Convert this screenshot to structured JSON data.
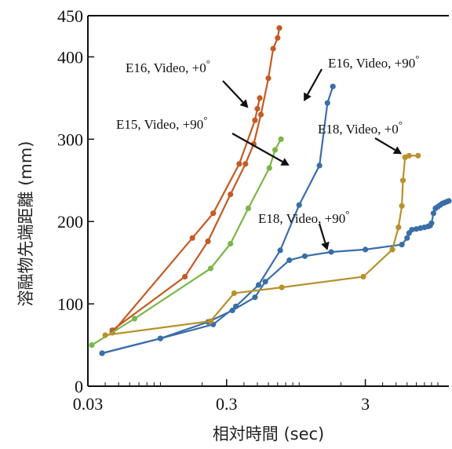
{
  "chart_data": {
    "type": "line",
    "title": "",
    "xlabel": "相対時間 (sec)",
    "ylabel": "溶融物先端距離 (mm)",
    "x_scale": "log",
    "xlim": [
      0.03,
      12
    ],
    "ylim": [
      0,
      450
    ],
    "x_ticks": [
      0.03,
      0.3,
      3
    ],
    "x_tick_labels": [
      "0.03",
      "0.3",
      "3"
    ],
    "y_ticks": [
      0,
      100,
      200,
      300,
      400,
      450
    ],
    "y_tick_labels": [
      "0",
      "100",
      "200",
      "300",
      "400",
      "450"
    ],
    "grid": false,
    "legend": "none",
    "series": [
      {
        "color": "#c55a24",
        "x": [
          0.045,
          0.17,
          0.24,
          0.37,
          0.48,
          0.5,
          0.52
        ],
        "y": [
          65,
          180,
          210,
          270,
          323,
          337,
          350
        ]
      },
      {
        "color": "#c55a24",
        "x": [
          0.045,
          0.15,
          0.22,
          0.32,
          0.41,
          0.47,
          0.53,
          0.6,
          0.65,
          0.7,
          0.72
        ],
        "y": [
          68,
          133,
          176,
          233,
          270,
          294,
          330,
          374,
          410,
          423,
          435
        ]
      },
      {
        "color": "#7ab648",
        "x": [
          0.032,
          0.065,
          0.23,
          0.32,
          0.43,
          0.61,
          0.67,
          0.74
        ],
        "y": [
          50,
          82,
          143,
          173,
          216,
          265,
          287,
          300
        ]
      },
      {
        "color": "#3a6ea8",
        "x": [
          0.038,
          0.1,
          0.24,
          0.35,
          0.51,
          0.73,
          1.0,
          1.4,
          1.6,
          1.75
        ],
        "y": [
          40,
          58,
          75,
          97,
          123,
          165,
          220,
          268,
          344,
          364
        ]
      },
      {
        "color": "#3a6ea8",
        "x": [
          0.038,
          0.1,
          0.22,
          0.33,
          0.48,
          0.57,
          0.85,
          1.1,
          1.7,
          3.0,
          5.5,
          6.0,
          6.2,
          6.5,
          7.0,
          7.5,
          8.0,
          8.5,
          8.8,
          9.0,
          9.3,
          9.6,
          10.0,
          10.4,
          10.8,
          11.2,
          11.6,
          12.0
        ],
        "y": [
          40,
          58,
          78,
          92,
          108,
          127,
          153,
          158,
          163,
          166,
          172,
          180,
          186,
          190,
          191,
          192,
          193,
          194,
          195,
          198,
          210,
          216,
          218,
          220,
          222,
          223,
          224,
          225
        ]
      },
      {
        "color": "#b8912c",
        "x": [
          0.04,
          0.23,
          0.34,
          0.75,
          2.9,
          4.7,
          5.2,
          5.5,
          5.6,
          5.8,
          6.2,
          7.2
        ],
        "y": [
          62,
          79,
          113,
          120,
          133,
          166,
          193,
          219,
          250,
          278,
          280,
          280
        ]
      }
    ],
    "annotations": [
      {
        "text": "E16, Video, +0",
        "sup": "°",
        "target": [
          0.43,
          338
        ]
      },
      {
        "text": "E16, Video, +90",
        "sup": "°",
        "target": [
          1.08,
          346
        ]
      },
      {
        "text": "E15, Video, +90",
        "sup": "°",
        "target": [
          0.85,
          268
        ]
      },
      {
        "text": "E18, Video, +0",
        "sup": "°",
        "target": [
          5.5,
          282
        ]
      },
      {
        "text": "E18, Video, +90",
        "sup": "°",
        "target": [
          1.6,
          165
        ]
      }
    ],
    "marker": "circle"
  }
}
